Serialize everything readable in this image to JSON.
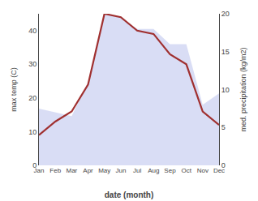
{
  "chart_data": {
    "type": "line",
    "categories": [
      "Jan",
      "Feb",
      "Mar",
      "Apr",
      "May",
      "Jun",
      "Jul",
      "Aug",
      "Sep",
      "Oct",
      "Nov",
      "Dec"
    ],
    "series": [
      {
        "type": "area",
        "axis": "y2",
        "color": "#aab4e8",
        "values": [
          7.5,
          7.0,
          6.5,
          11.0,
          20.0,
          19.5,
          18.0,
          18.0,
          16.0,
          16.0,
          8.0,
          9.5
        ]
      },
      {
        "type": "line",
        "color": "#a03030",
        "values": [
          9,
          13,
          16,
          24,
          45,
          44,
          40,
          39,
          33,
          30,
          16,
          12
        ]
      }
    ],
    "xlabel": "date (month)",
    "ylabel": "max temp (C)",
    "y2label": "med. precipitation (kg/m2)",
    "ylim": [
      0,
      45
    ],
    "yticks": [
      0,
      10,
      20,
      30,
      40
    ],
    "y2lim": [
      0,
      20
    ],
    "y2ticks": [
      0,
      5,
      10,
      15,
      20
    ],
    "grid": false
  }
}
